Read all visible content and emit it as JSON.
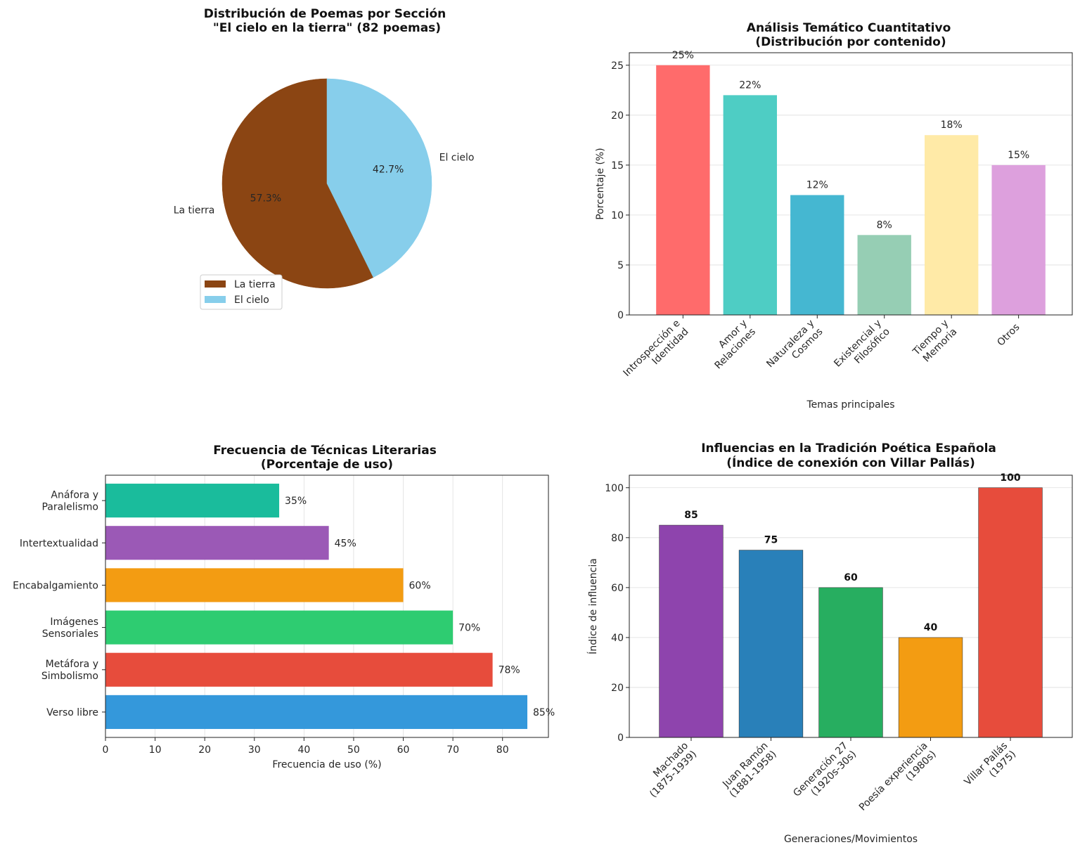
{
  "chart_data": [
    {
      "type": "pie",
      "title": "Distribución de Poemas por Sección\n\"El cielo en la tierra\" (82 poemas)",
      "slices": [
        {
          "label": "La tierra",
          "value": 57.3,
          "pct_label": "57.3%",
          "color": "#8B4513"
        },
        {
          "label": "El cielo",
          "value": 42.7,
          "pct_label": "42.7%",
          "color": "#87CEEB"
        }
      ],
      "legend": [
        "La tierra",
        "El cielo"
      ],
      "legend_position": "bottom-left"
    },
    {
      "type": "bar",
      "title": "Análisis Temático Cuantitativo\n(Distribución por contenido)",
      "categories": [
        "Introspección e\nIdentidad",
        "Amor y\nRelaciones",
        "Naturaleza y\nCosmos",
        "Existencial y\nFilosófico",
        "Tiempo y\nMemoria",
        "Otros"
      ],
      "values": [
        25,
        22,
        12,
        8,
        18,
        15
      ],
      "value_labels": [
        "25%",
        "22%",
        "12%",
        "8%",
        "18%",
        "15%"
      ],
      "colors": [
        "#FF6B6B",
        "#4ECDC4",
        "#45B7D1",
        "#96CEB4",
        "#FFEAA7",
        "#DDA0DD"
      ],
      "xlabel": "Temas principales",
      "ylabel": "Porcentaje (%)",
      "ylim": [
        0,
        26.25
      ],
      "yticks": [
        "0",
        "5",
        "10",
        "15",
        "20",
        "25"
      ],
      "grid": "y"
    },
    {
      "type": "barh",
      "title": "Frecuencia de Técnicas Literarias\n(Porcentaje de uso)",
      "categories": [
        "Verso libre",
        "Metáfora y\nSimbolismo",
        "Imágenes\nSensoriales",
        "Encabalgamiento",
        "Intertextualidad",
        "Anáfora y\nParalelismo"
      ],
      "values": [
        85,
        78,
        70,
        60,
        45,
        35
      ],
      "value_labels": [
        "85%",
        "78%",
        "70%",
        "60%",
        "45%",
        "35%"
      ],
      "colors": [
        "#3498DB",
        "#E74C3C",
        "#2ECC71",
        "#F39C12",
        "#9B59B6",
        "#1ABC9C"
      ],
      "xlabel": "Frecuencia de uso (%)",
      "xlim": [
        0,
        89.25
      ],
      "xticks": [
        "0",
        "10",
        "20",
        "30",
        "40",
        "50",
        "60",
        "70",
        "80"
      ],
      "grid": "x"
    },
    {
      "type": "bar",
      "title": "Influencias en la Tradición Poética Española\n(Índice de conexión con Villar Pallás)",
      "categories": [
        "Machado\n(1875-1939)",
        "Juan Ramón\n(1881-1958)",
        "Generación 27\n(1920s-30s)",
        "Poesía experiencia\n(1980s)",
        "Villar Pallás\n(1975)"
      ],
      "values": [
        85,
        75,
        60,
        40,
        100
      ],
      "value_labels": [
        "85",
        "75",
        "60",
        "40",
        "100"
      ],
      "colors": [
        "#8E44AD",
        "#2980B9",
        "#27AE60",
        "#F39C12",
        "#E74C3C"
      ],
      "xlabel": "Generaciones/Movimientos",
      "ylabel": "Índice de influencia",
      "ylim": [
        0,
        105
      ],
      "yticks": [
        "0",
        "20",
        "40",
        "60",
        "80",
        "100"
      ],
      "grid": "y"
    }
  ]
}
